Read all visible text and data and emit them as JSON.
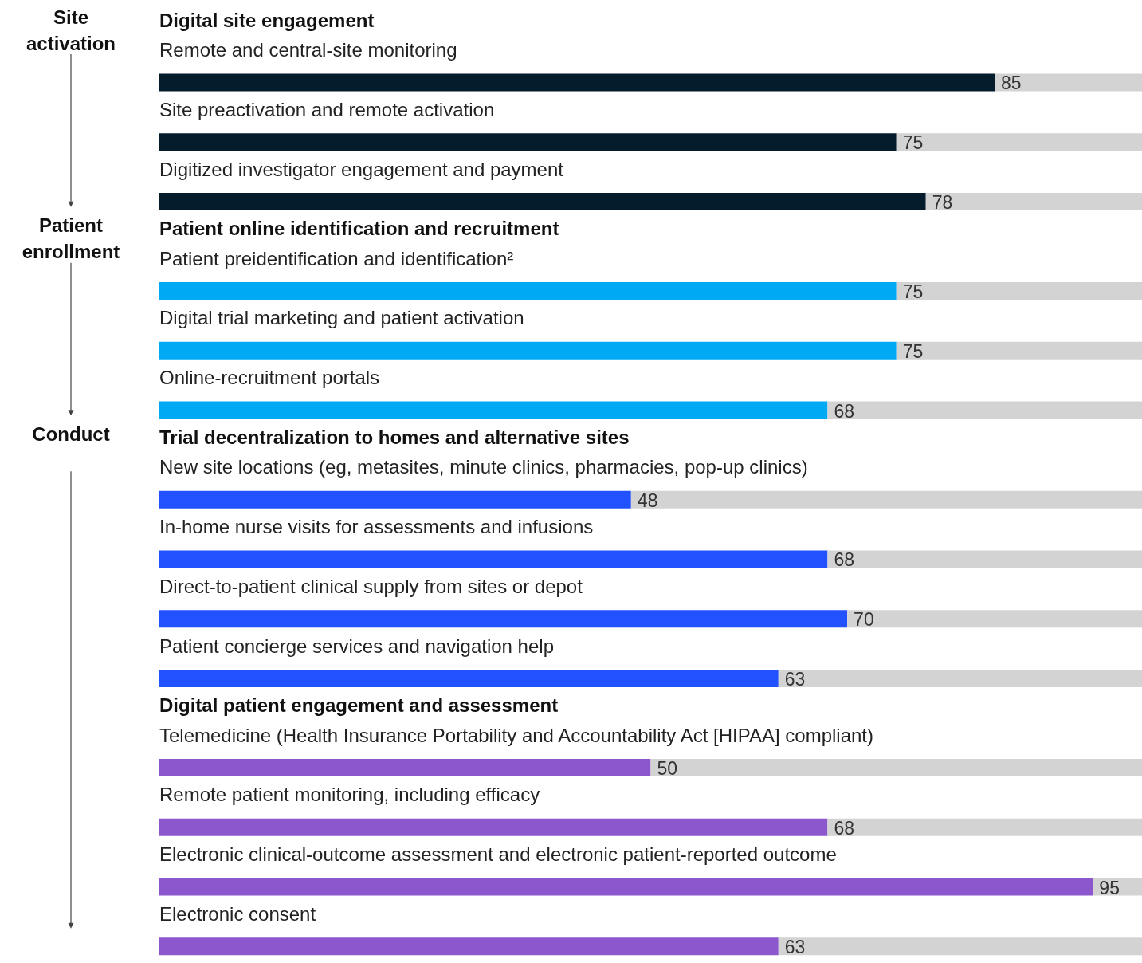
{
  "chart_data": {
    "type": "bar",
    "orientation": "horizontal",
    "stacked": true,
    "xlim": [
      0,
      100
    ],
    "categories": [
      "Remote and central-site monitoring",
      "Site preactivation and remote activation",
      "Digitized investigator engagement and payment",
      "Patient preidentification and identification²",
      "Digital trial marketing and patient activation",
      "Online-recruitment portals",
      "New site locations (eg, metasites, minute clinics, pharmacies, pop-up clinics)",
      "In-home nurse visits for assessments and infusions",
      "Direct-to-patient clinical supply from sites or depot",
      "Patient concierge services and navigation help",
      "Telemedicine (Health Insurance Portability and Accountability Act [HIPAA] compliant)",
      "Remote patient monitoring, including efficacy",
      "Electronic clinical-outcome assessment and electronic patient-reported outcome",
      "Electronic consent"
    ],
    "series": [
      {
        "colors": [
          "#051c2c",
          "#051c2c",
          "#051c2c",
          "#00a9f4",
          "#00a9f4",
          "#00a9f4",
          "#2251ff",
          "#2251ff",
          "#2251ff",
          "#2251ff",
          "#8c56cc",
          "#8c56cc",
          "#8c56cc",
          "#8c56cc"
        ],
        "values": [
          85,
          75,
          78,
          75,
          75,
          68,
          48,
          68,
          70,
          63,
          50,
          68,
          95,
          63
        ],
        "value_labels": [
          "85",
          "75",
          "78",
          "75",
          "75",
          "68",
          "48",
          "68",
          "70",
          "63",
          "50",
          "68",
          "95",
          "63"
        ]
      },
      {
        "color": "#d3d3d3",
        "values": [
          15,
          25,
          22,
          25,
          25,
          32,
          52,
          32,
          30,
          37,
          50,
          32,
          5,
          37
        ]
      }
    ],
    "annotations": [
      "Site activation",
      "Patient enrollment",
      "Conduct",
      "Digital site engagement",
      "Patient online identification and recruitment",
      "Trial decentralization to homes and alternative sites",
      "Digital patient engagement and assessment"
    ]
  }
}
